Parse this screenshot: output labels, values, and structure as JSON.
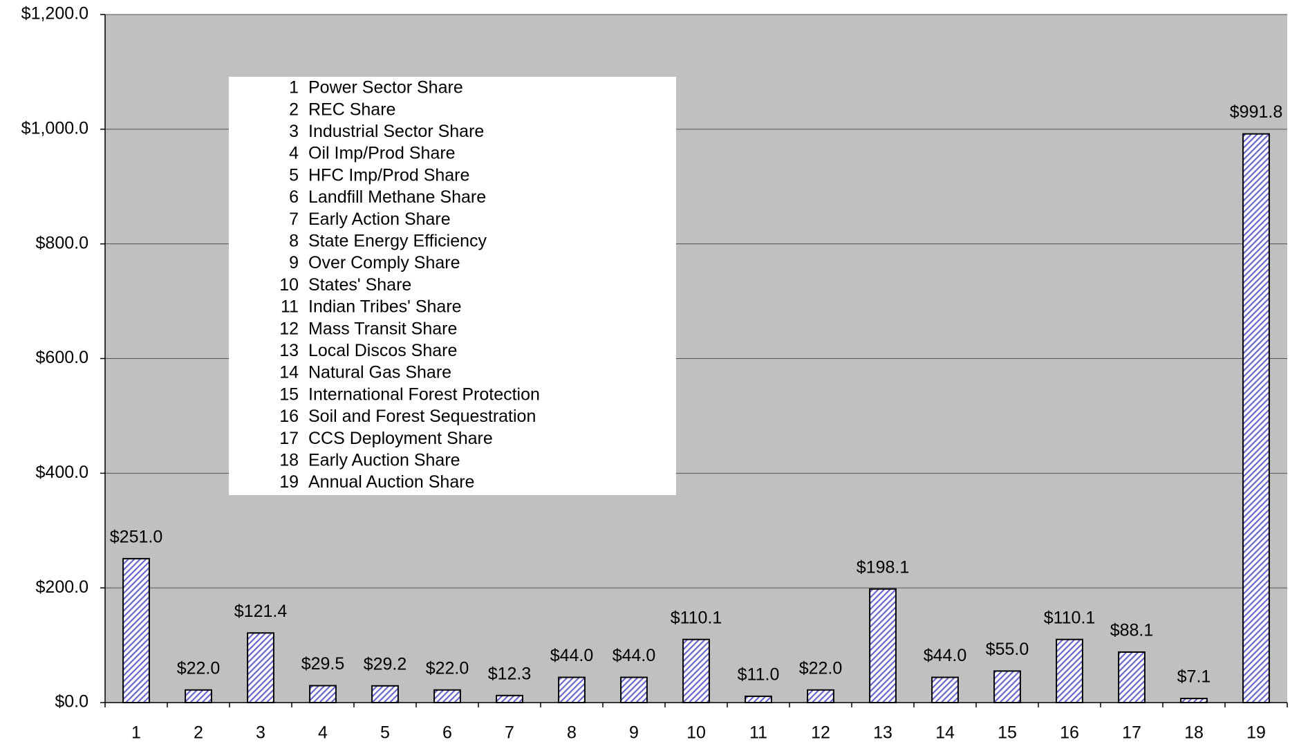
{
  "chart_data": {
    "type": "bar",
    "categories": [
      "1",
      "2",
      "3",
      "4",
      "5",
      "6",
      "7",
      "8",
      "9",
      "10",
      "11",
      "12",
      "13",
      "14",
      "15",
      "16",
      "17",
      "18",
      "19"
    ],
    "values": [
      251.0,
      22.0,
      121.4,
      29.5,
      29.2,
      22.0,
      12.3,
      44.0,
      44.0,
      110.1,
      11.0,
      22.0,
      198.1,
      44.0,
      55.0,
      110.1,
      88.1,
      7.1,
      991.8
    ],
    "value_labels": [
      "$251.0",
      "$22.0",
      "$121.4",
      "$29.5",
      "$29.2",
      "$22.0",
      "$12.3",
      "$44.0",
      "$44.0",
      "$110.1",
      "$11.0",
      "$22.0",
      "$198.1",
      "$44.0",
      "$55.0",
      "$110.1",
      "$88.1",
      "$7.1",
      "$991.8"
    ],
    "color": "#6666cc",
    "ylim": [
      0,
      1200
    ],
    "yticks": [
      {
        "value": 0,
        "label": "$0.0"
      },
      {
        "value": 200,
        "label": "$200.0"
      },
      {
        "value": 400,
        "label": "$400.0"
      },
      {
        "value": 600,
        "label": "$600.0"
      },
      {
        "value": 800,
        "label": "$800.0"
      },
      {
        "value": 1000,
        "label": "$1,000.0"
      },
      {
        "value": 1200,
        "label": "$1,200.0"
      }
    ],
    "grid": true,
    "legend": [
      {
        "number": "1",
        "label": "Power Sector Share"
      },
      {
        "number": "2",
        "label": "REC Share"
      },
      {
        "number": "3",
        "label": "Industrial Sector Share"
      },
      {
        "number": "4",
        "label": "Oil Imp/Prod Share"
      },
      {
        "number": "5",
        "label": "HFC Imp/Prod Share"
      },
      {
        "number": "6",
        "label": "Landfill Methane Share"
      },
      {
        "number": "7",
        "label": "Early Action Share"
      },
      {
        "number": "8",
        "label": "State Energy Efficiency"
      },
      {
        "number": "9",
        "label": "Over Comply Share"
      },
      {
        "number": "10",
        "label": "States' Share"
      },
      {
        "number": "11",
        "label": "Indian Tribes' Share"
      },
      {
        "number": "12",
        "label": "Mass Transit Share"
      },
      {
        "number": "13",
        "label": "Local Discos Share"
      },
      {
        "number": "14",
        "label": "Natural Gas Share"
      },
      {
        "number": "15",
        "label": "International Forest Protection"
      },
      {
        "number": "16",
        "label": "Soil and Forest Sequestration"
      },
      {
        "number": "17",
        "label": "CCS Deployment Share"
      },
      {
        "number": "18",
        "label": "Early Auction Share"
      },
      {
        "number": "19",
        "label": "Annual Auction Share"
      }
    ]
  }
}
